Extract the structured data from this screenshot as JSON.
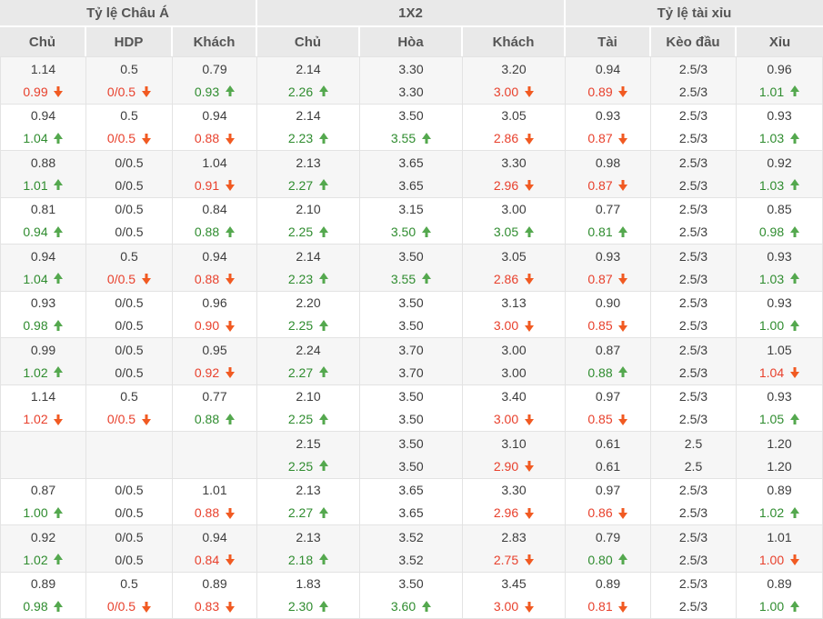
{
  "colors": {
    "header_background": "#e9e9e9",
    "row_stripe": "#f6f6f6",
    "value_text": "#3d3d3d",
    "up_green": "#2f8c2f",
    "down_red": "#e8402c",
    "up_arrow_green": "#54a84e",
    "down_arrow_orange": "#f15a22"
  },
  "table": {
    "groups": [
      {
        "label": "Tỷ lệ Châu Á",
        "cols": [
          "Chủ",
          "HDP",
          "Khách"
        ]
      },
      {
        "label": "1X2",
        "cols": [
          "Chủ",
          "Hòa",
          "Khách"
        ]
      },
      {
        "label": "Tỷ lệ tài xỉu",
        "cols": [
          "Tài",
          "Kèo đầu",
          "Xỉu"
        ]
      }
    ],
    "rows": [
      {
        "cells": [
          {
            "v1": "1.14",
            "v2": "0.99",
            "dir": "down"
          },
          {
            "v1": "0.5",
            "v2": "0/0.5",
            "dir": "down"
          },
          {
            "v1": "0.79",
            "v2": "0.93",
            "dir": "up"
          },
          {
            "v1": "2.14",
            "v2": "2.26",
            "dir": "up"
          },
          {
            "v1": "3.30",
            "v2": "3.30",
            "dir": null
          },
          {
            "v1": "3.20",
            "v2": "3.00",
            "dir": "down"
          },
          {
            "v1": "0.94",
            "v2": "0.89",
            "dir": "down"
          },
          {
            "v1": "2.5/3",
            "v2": "2.5/3",
            "dir": null
          },
          {
            "v1": "0.96",
            "v2": "1.01",
            "dir": "up"
          }
        ]
      },
      {
        "cells": [
          {
            "v1": "0.94",
            "v2": "1.04",
            "dir": "up"
          },
          {
            "v1": "0.5",
            "v2": "0/0.5",
            "dir": "down"
          },
          {
            "v1": "0.94",
            "v2": "0.88",
            "dir": "down"
          },
          {
            "v1": "2.14",
            "v2": "2.23",
            "dir": "up"
          },
          {
            "v1": "3.50",
            "v2": "3.55",
            "dir": "up"
          },
          {
            "v1": "3.05",
            "v2": "2.86",
            "dir": "down"
          },
          {
            "v1": "0.93",
            "v2": "0.87",
            "dir": "down"
          },
          {
            "v1": "2.5/3",
            "v2": "2.5/3",
            "dir": null
          },
          {
            "v1": "0.93",
            "v2": "1.03",
            "dir": "up"
          }
        ]
      },
      {
        "cells": [
          {
            "v1": "0.88",
            "v2": "1.01",
            "dir": "up"
          },
          {
            "v1": "0/0.5",
            "v2": "0/0.5",
            "dir": null
          },
          {
            "v1": "1.04",
            "v2": "0.91",
            "dir": "down"
          },
          {
            "v1": "2.13",
            "v2": "2.27",
            "dir": "up"
          },
          {
            "v1": "3.65",
            "v2": "3.65",
            "dir": null
          },
          {
            "v1": "3.30",
            "v2": "2.96",
            "dir": "down"
          },
          {
            "v1": "0.98",
            "v2": "0.87",
            "dir": "down"
          },
          {
            "v1": "2.5/3",
            "v2": "2.5/3",
            "dir": null
          },
          {
            "v1": "0.92",
            "v2": "1.03",
            "dir": "up"
          }
        ]
      },
      {
        "cells": [
          {
            "v1": "0.81",
            "v2": "0.94",
            "dir": "up"
          },
          {
            "v1": "0/0.5",
            "v2": "0/0.5",
            "dir": null
          },
          {
            "v1": "0.84",
            "v2": "0.88",
            "dir": "up"
          },
          {
            "v1": "2.10",
            "v2": "2.25",
            "dir": "up"
          },
          {
            "v1": "3.15",
            "v2": "3.50",
            "dir": "up"
          },
          {
            "v1": "3.00",
            "v2": "3.05",
            "dir": "up"
          },
          {
            "v1": "0.77",
            "v2": "0.81",
            "dir": "up"
          },
          {
            "v1": "2.5/3",
            "v2": "2.5/3",
            "dir": null
          },
          {
            "v1": "0.85",
            "v2": "0.98",
            "dir": "up"
          }
        ]
      },
      {
        "cells": [
          {
            "v1": "0.94",
            "v2": "1.04",
            "dir": "up"
          },
          {
            "v1": "0.5",
            "v2": "0/0.5",
            "dir": "down"
          },
          {
            "v1": "0.94",
            "v2": "0.88",
            "dir": "down"
          },
          {
            "v1": "2.14",
            "v2": "2.23",
            "dir": "up"
          },
          {
            "v1": "3.50",
            "v2": "3.55",
            "dir": "up"
          },
          {
            "v1": "3.05",
            "v2": "2.86",
            "dir": "down"
          },
          {
            "v1": "0.93",
            "v2": "0.87",
            "dir": "down"
          },
          {
            "v1": "2.5/3",
            "v2": "2.5/3",
            "dir": null
          },
          {
            "v1": "0.93",
            "v2": "1.03",
            "dir": "up"
          }
        ]
      },
      {
        "cells": [
          {
            "v1": "0.93",
            "v2": "0.98",
            "dir": "up"
          },
          {
            "v1": "0/0.5",
            "v2": "0/0.5",
            "dir": null
          },
          {
            "v1": "0.96",
            "v2": "0.90",
            "dir": "down"
          },
          {
            "v1": "2.20",
            "v2": "2.25",
            "dir": "up"
          },
          {
            "v1": "3.50",
            "v2": "3.50",
            "dir": null
          },
          {
            "v1": "3.13",
            "v2": "3.00",
            "dir": "down"
          },
          {
            "v1": "0.90",
            "v2": "0.85",
            "dir": "down"
          },
          {
            "v1": "2.5/3",
            "v2": "2.5/3",
            "dir": null
          },
          {
            "v1": "0.93",
            "v2": "1.00",
            "dir": "up"
          }
        ]
      },
      {
        "cells": [
          {
            "v1": "0.99",
            "v2": "1.02",
            "dir": "up"
          },
          {
            "v1": "0/0.5",
            "v2": "0/0.5",
            "dir": null
          },
          {
            "v1": "0.95",
            "v2": "0.92",
            "dir": "down"
          },
          {
            "v1": "2.24",
            "v2": "2.27",
            "dir": "up"
          },
          {
            "v1": "3.70",
            "v2": "3.70",
            "dir": null
          },
          {
            "v1": "3.00",
            "v2": "3.00",
            "dir": null
          },
          {
            "v1": "0.87",
            "v2": "0.88",
            "dir": "up"
          },
          {
            "v1": "2.5/3",
            "v2": "2.5/3",
            "dir": null
          },
          {
            "v1": "1.05",
            "v2": "1.04",
            "dir": "down"
          }
        ]
      },
      {
        "cells": [
          {
            "v1": "1.14",
            "v2": "1.02",
            "dir": "down"
          },
          {
            "v1": "0.5",
            "v2": "0/0.5",
            "dir": "down"
          },
          {
            "v1": "0.77",
            "v2": "0.88",
            "dir": "up"
          },
          {
            "v1": "2.10",
            "v2": "2.25",
            "dir": "up"
          },
          {
            "v1": "3.50",
            "v2": "3.50",
            "dir": null
          },
          {
            "v1": "3.40",
            "v2": "3.00",
            "dir": "down"
          },
          {
            "v1": "0.97",
            "v2": "0.85",
            "dir": "down"
          },
          {
            "v1": "2.5/3",
            "v2": "2.5/3",
            "dir": null
          },
          {
            "v1": "0.93",
            "v2": "1.05",
            "dir": "up"
          }
        ]
      },
      {
        "cells": [
          {
            "v1": "",
            "v2": "",
            "dir": null
          },
          {
            "v1": "",
            "v2": "",
            "dir": null
          },
          {
            "v1": "",
            "v2": "",
            "dir": null
          },
          {
            "v1": "2.15",
            "v2": "2.25",
            "dir": "up"
          },
          {
            "v1": "3.50",
            "v2": "3.50",
            "dir": null
          },
          {
            "v1": "3.10",
            "v2": "2.90",
            "dir": "down"
          },
          {
            "v1": "0.61",
            "v2": "0.61",
            "dir": null
          },
          {
            "v1": "2.5",
            "v2": "2.5",
            "dir": null
          },
          {
            "v1": "1.20",
            "v2": "1.20",
            "dir": null
          }
        ]
      },
      {
        "cells": [
          {
            "v1": "0.87",
            "v2": "1.00",
            "dir": "up"
          },
          {
            "v1": "0/0.5",
            "v2": "0/0.5",
            "dir": null
          },
          {
            "v1": "1.01",
            "v2": "0.88",
            "dir": "down"
          },
          {
            "v1": "2.13",
            "v2": "2.27",
            "dir": "up"
          },
          {
            "v1": "3.65",
            "v2": "3.65",
            "dir": null
          },
          {
            "v1": "3.30",
            "v2": "2.96",
            "dir": "down"
          },
          {
            "v1": "0.97",
            "v2": "0.86",
            "dir": "down"
          },
          {
            "v1": "2.5/3",
            "v2": "2.5/3",
            "dir": null
          },
          {
            "v1": "0.89",
            "v2": "1.02",
            "dir": "up"
          }
        ]
      },
      {
        "cells": [
          {
            "v1": "0.92",
            "v2": "1.02",
            "dir": "up"
          },
          {
            "v1": "0/0.5",
            "v2": "0/0.5",
            "dir": null
          },
          {
            "v1": "0.94",
            "v2": "0.84",
            "dir": "down"
          },
          {
            "v1": "2.13",
            "v2": "2.18",
            "dir": "up"
          },
          {
            "v1": "3.52",
            "v2": "3.52",
            "dir": null
          },
          {
            "v1": "2.83",
            "v2": "2.75",
            "dir": "down"
          },
          {
            "v1": "0.79",
            "v2": "0.80",
            "dir": "up"
          },
          {
            "v1": "2.5/3",
            "v2": "2.5/3",
            "dir": null
          },
          {
            "v1": "1.01",
            "v2": "1.00",
            "dir": "down"
          }
        ]
      },
      {
        "cells": [
          {
            "v1": "0.89",
            "v2": "0.98",
            "dir": "up"
          },
          {
            "v1": "0.5",
            "v2": "0/0.5",
            "dir": "down"
          },
          {
            "v1": "0.89",
            "v2": "0.83",
            "dir": "down"
          },
          {
            "v1": "1.83",
            "v2": "2.30",
            "dir": "up"
          },
          {
            "v1": "3.50",
            "v2": "3.60",
            "dir": "up"
          },
          {
            "v1": "3.45",
            "v2": "3.00",
            "dir": "down"
          },
          {
            "v1": "0.89",
            "v2": "0.81",
            "dir": "down"
          },
          {
            "v1": "2.5/3",
            "v2": "2.5/3",
            "dir": null
          },
          {
            "v1": "0.89",
            "v2": "1.00",
            "dir": "up"
          }
        ]
      }
    ]
  }
}
